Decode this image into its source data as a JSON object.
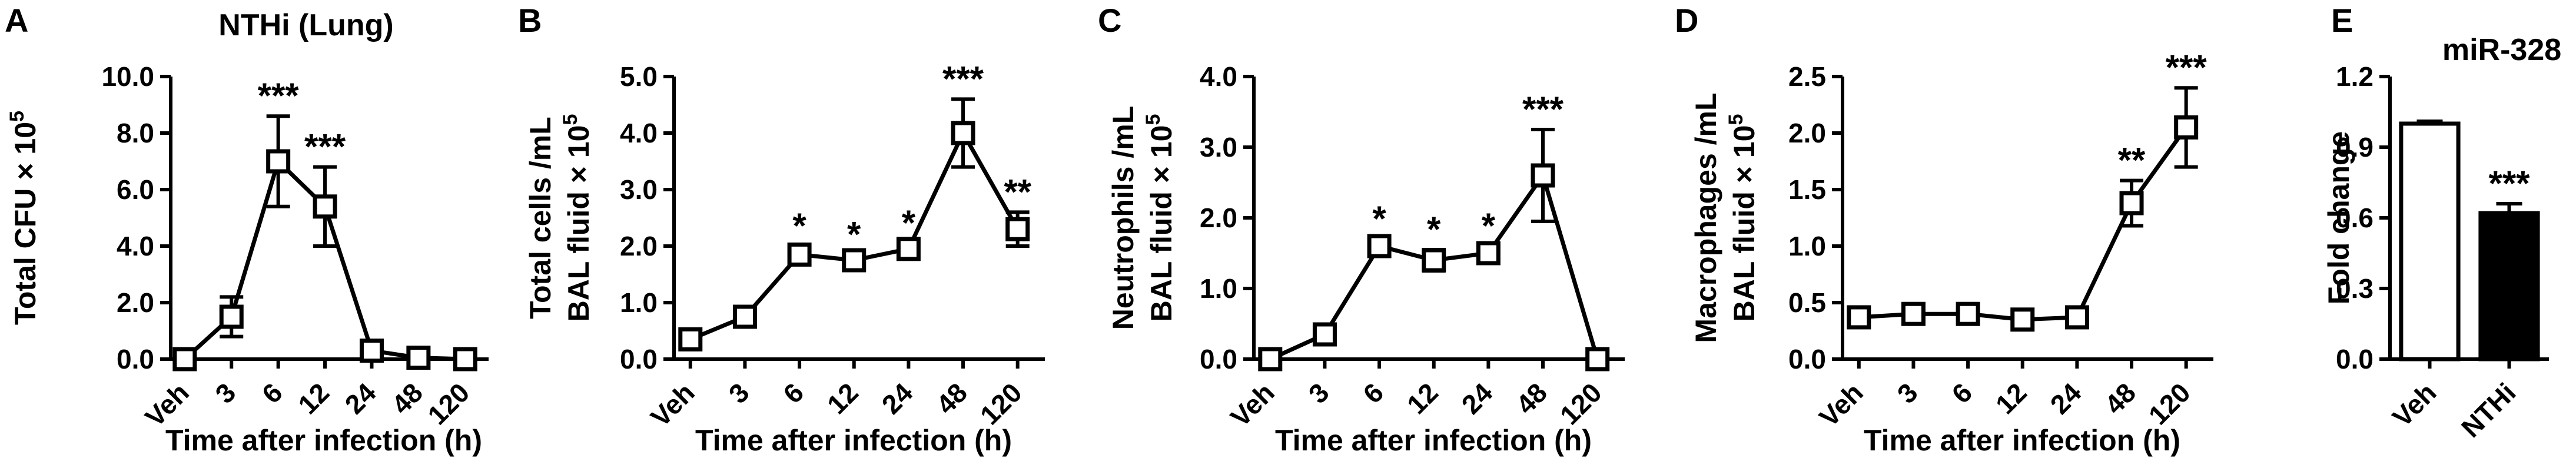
{
  "chart_data": [
    {
      "panel": "A",
      "type": "line",
      "title": "NTHi (Lung)",
      "ylabel": "Total CFU × 10",
      "ylabel_sup": "5",
      "xlabel": "Time after infection (h)",
      "categories": [
        "Veh",
        "3",
        "6",
        "12",
        "24",
        "48",
        "120"
      ],
      "values": [
        0,
        1.5,
        7.0,
        5.4,
        0.3,
        0.05,
        0
      ],
      "errors": [
        0,
        0.7,
        1.6,
        1.4,
        0.15,
        0.05,
        0
      ],
      "significance": [
        "",
        "",
        "***",
        "***",
        "",
        "",
        ""
      ],
      "ylim": [
        0,
        10
      ],
      "yticks": [
        "0.0",
        "2.0",
        "4.0",
        "6.0",
        "8.0",
        "10.0"
      ]
    },
    {
      "panel": "B",
      "type": "line",
      "title": "",
      "ylabel": "Total cells /mL",
      "ylabel2": "BAL fluid × 10",
      "ylabel_sup": "5",
      "xlabel": "Time after infection (h)",
      "categories": [
        "Veh",
        "3",
        "6",
        "12",
        "24",
        "48",
        "120"
      ],
      "values": [
        0.35,
        0.75,
        1.85,
        1.75,
        1.95,
        4.0,
        2.3
      ],
      "errors": [
        0.05,
        0.1,
        0.15,
        0.1,
        0.1,
        0.6,
        0.3
      ],
      "significance": [
        "",
        "",
        "*",
        "*",
        "*",
        "***",
        "**"
      ],
      "ylim": [
        0,
        5
      ],
      "yticks": [
        "0.0",
        "1.0",
        "2.0",
        "3.0",
        "4.0",
        "5.0"
      ]
    },
    {
      "panel": "C",
      "type": "line",
      "title": "",
      "ylabel": "Neutrophils /mL",
      "ylabel2": "BAL fluid × 10",
      "ylabel_sup": "5",
      "xlabel": "Time after infection (h)",
      "categories": [
        "Veh",
        "3",
        "6",
        "12",
        "24",
        "48",
        "120"
      ],
      "values": [
        0,
        0.35,
        1.6,
        1.4,
        1.5,
        2.6,
        0
      ],
      "errors": [
        0,
        0.05,
        0.1,
        0.15,
        0.1,
        0.65,
        0
      ],
      "significance": [
        "",
        "",
        "*",
        "*",
        "*",
        "***",
        ""
      ],
      "ylim": [
        0,
        4
      ],
      "yticks": [
        "0.0",
        "1.0",
        "2.0",
        "3.0",
        "4.0"
      ]
    },
    {
      "panel": "D",
      "type": "line",
      "title": "",
      "ylabel": "Macrophages /mL",
      "ylabel2": "BAL fluid × 10",
      "ylabel_sup": "5",
      "xlabel": "Time after infection (h)",
      "categories": [
        "Veh",
        "3",
        "6",
        "12",
        "24",
        "48",
        "120"
      ],
      "values": [
        0.37,
        0.4,
        0.4,
        0.35,
        0.37,
        1.38,
        2.05
      ],
      "errors": [
        0.03,
        0.03,
        0.03,
        0.03,
        0.03,
        0.2,
        0.35
      ],
      "significance": [
        "",
        "",
        "",
        "",
        "",
        "**",
        "***"
      ],
      "ylim": [
        0,
        2.5
      ],
      "yticks": [
        "0.0",
        "0.5",
        "1.0",
        "1.5",
        "2.0",
        "2.5"
      ]
    },
    {
      "panel": "E",
      "type": "bar",
      "title": "miR-328",
      "ylabel": "Fold change",
      "categories": [
        "Veh",
        "NTHi"
      ],
      "values": [
        1.0,
        0.62
      ],
      "errors": [
        0.01,
        0.04
      ],
      "bar_colors": [
        "#ffffff",
        "#000000"
      ],
      "significance": [
        "",
        "***"
      ],
      "ylim": [
        0,
        1.2
      ],
      "yticks": [
        "0.0",
        "0.3",
        "0.6",
        "0.9",
        "1.2"
      ]
    }
  ]
}
